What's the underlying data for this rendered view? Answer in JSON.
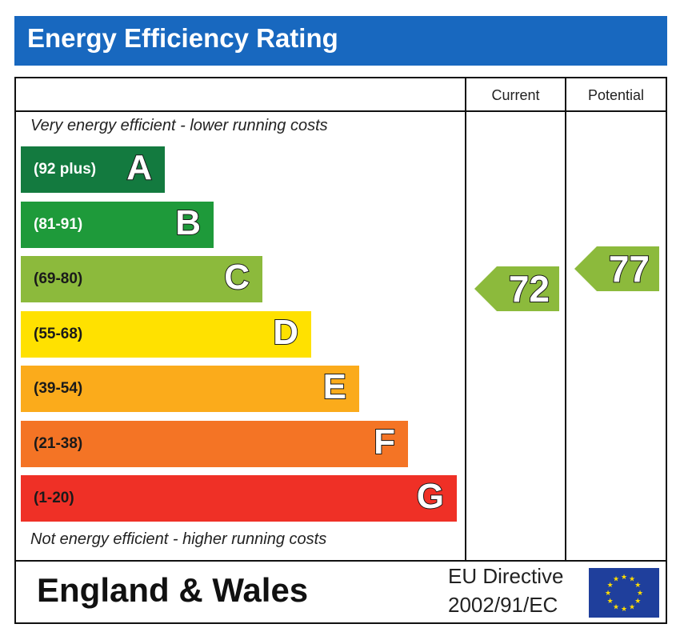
{
  "title": "Energy Efficiency Rating",
  "columns": {
    "current": "Current",
    "potential": "Potential"
  },
  "top_note": "Very energy efficient - lower running costs",
  "bottom_note": "Not energy efficient - higher running costs",
  "chart_data": {
    "type": "bar",
    "bands": [
      {
        "letter": "A",
        "range": "(92 plus)",
        "color": "#137a3f",
        "text_color": "#ffffff"
      },
      {
        "letter": "B",
        "range": "(81-91)",
        "color": "#1e9a3a",
        "text_color": "#ffffff"
      },
      {
        "letter": "C",
        "range": "(69-80)",
        "color": "#8cba3c",
        "text_color": "#1a1a1a"
      },
      {
        "letter": "D",
        "range": "(55-68)",
        "color": "#ffe100",
        "text_color": "#1a1a1a"
      },
      {
        "letter": "E",
        "range": "(39-54)",
        "color": "#fbab1b",
        "text_color": "#1a1a1a"
      },
      {
        "letter": "F",
        "range": "(21-38)",
        "color": "#f47425",
        "text_color": "#1a1a1a"
      },
      {
        "letter": "G",
        "range": "(1-20)",
        "color": "#ef3026",
        "text_color": "#1a1a1a"
      }
    ],
    "current": {
      "value": 72,
      "band": "C",
      "color": "#8cba3c"
    },
    "potential": {
      "value": 77,
      "band": "C",
      "color": "#8cba3c"
    }
  },
  "footer": {
    "region": "England & Wales",
    "directive_line1": "EU Directive",
    "directive_line2": "2002/91/EC",
    "flag_color": "#1f3f9c",
    "star_color": "#ffdd00"
  }
}
